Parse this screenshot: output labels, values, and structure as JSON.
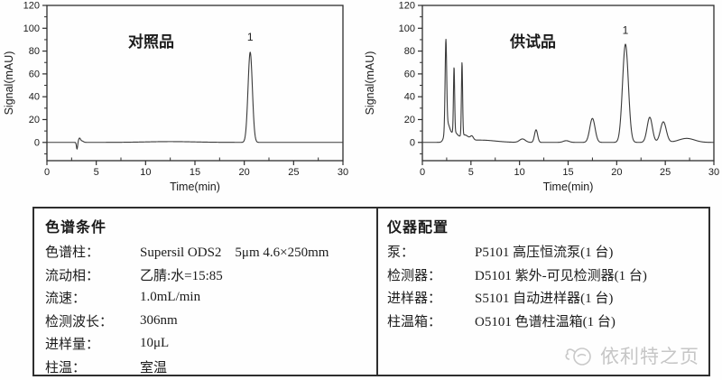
{
  "colors": {
    "line": "#3a3a3a",
    "axis": "#2e2e2e",
    "text": "#1b1b1b",
    "table_border": "#2e2e2e",
    "watermark": "#c6c6c6",
    "background": "#fefefe"
  },
  "chart_data": [
    {
      "type": "line",
      "name": "reference-chromatogram",
      "sample_label": "对照品",
      "xlabel": "Time(min)",
      "ylabel": "Signal(mAU)",
      "xlim": [
        0,
        30
      ],
      "ylim": [
        -16,
        120
      ],
      "xticks": [
        0,
        5,
        10,
        15,
        20,
        25,
        30
      ],
      "yticks": [
        0,
        20,
        40,
        60,
        80,
        100,
        120
      ],
      "x_minor_step": 2.5,
      "y_minor_step": 10,
      "grid": "off",
      "annotated_peaks": [
        {
          "label": "1",
          "t": 20.6,
          "label_value": 89
        }
      ],
      "peaks": [
        {
          "t": 3.05,
          "h": -6.0,
          "s": 0.06
        },
        {
          "t": 3.3,
          "h": 3.5,
          "s": 0.1
        },
        {
          "t": 3.55,
          "h": 1.2,
          "s": 0.15
        },
        {
          "t": 12.5,
          "h": 0.7,
          "s": 2.5
        },
        {
          "t": 20.6,
          "h": 79.0,
          "s": 0.22
        }
      ]
    },
    {
      "type": "line",
      "name": "test-sample-chromatogram",
      "sample_label": "供试品",
      "xlabel": "Time(min)",
      "ylabel": "Signal(mAU)",
      "xlim": [
        0,
        30
      ],
      "ylim": [
        -16,
        120
      ],
      "xticks": [
        0,
        5,
        10,
        15,
        20,
        25,
        30
      ],
      "yticks": [
        0,
        20,
        40,
        60,
        80,
        100,
        120
      ],
      "x_minor_step": 2.5,
      "y_minor_step": 10,
      "grid": "off",
      "annotated_peaks": [
        {
          "label": "1",
          "t": 20.9,
          "label_value": 95
        }
      ],
      "peaks": [
        {
          "t": 2.42,
          "h": 77.0,
          "s": 0.08
        },
        {
          "t": 2.58,
          "h": 16.0,
          "s": 0.25
        },
        {
          "t": 3.26,
          "h": 57.0,
          "s": 0.06
        },
        {
          "t": 3.3,
          "h": 8.0,
          "s": 0.3
        },
        {
          "t": 4.08,
          "h": 64.0,
          "s": 0.06
        },
        {
          "t": 4.3,
          "h": 5.5,
          "s": 0.45
        },
        {
          "t": 5.1,
          "h": 3.0,
          "s": 0.15
        },
        {
          "t": 6.0,
          "h": 2.0,
          "s": 1.5
        },
        {
          "t": 10.3,
          "h": 3.0,
          "s": 0.3
        },
        {
          "t": 11.7,
          "h": 11.0,
          "s": 0.16
        },
        {
          "t": 14.8,
          "h": 1.5,
          "s": 0.3
        },
        {
          "t": 17.5,
          "h": 21.0,
          "s": 0.27
        },
        {
          "t": 20.9,
          "h": 86.0,
          "s": 0.3
        },
        {
          "t": 23.4,
          "h": 22.0,
          "s": 0.27
        },
        {
          "t": 24.8,
          "h": 18.0,
          "s": 0.3
        },
        {
          "t": 27.2,
          "h": 3.5,
          "s": 0.8
        }
      ]
    }
  ],
  "conditions_table": {
    "title": "色谱条件",
    "rows": [
      {
        "label": "色谱柱：",
        "value": "Supersil ODS2　5μm 4.6×250mm"
      },
      {
        "label": "流动相：",
        "value": "乙腈:水=15:85"
      },
      {
        "label": "流速：",
        "value": "1.0mL/min"
      },
      {
        "label": "检测波长：",
        "value": "306nm"
      },
      {
        "label": "进样量：",
        "value": "10μL"
      },
      {
        "label": "柱温：",
        "value": "室温"
      }
    ]
  },
  "instrument_table": {
    "title": "仪器配置",
    "rows": [
      {
        "label": "泵：",
        "value": "P5101 高压恒流泵(1 台)"
      },
      {
        "label": "检测器：",
        "value": "D5101 紫外-可见检测器(1 台)"
      },
      {
        "label": "进样器：",
        "value": "S5101 自动进样器(1 台)"
      },
      {
        "label": "柱温箱：",
        "value": "O5101 色谱柱温箱(1 台)"
      }
    ],
    "watermark": "依利特之页"
  }
}
